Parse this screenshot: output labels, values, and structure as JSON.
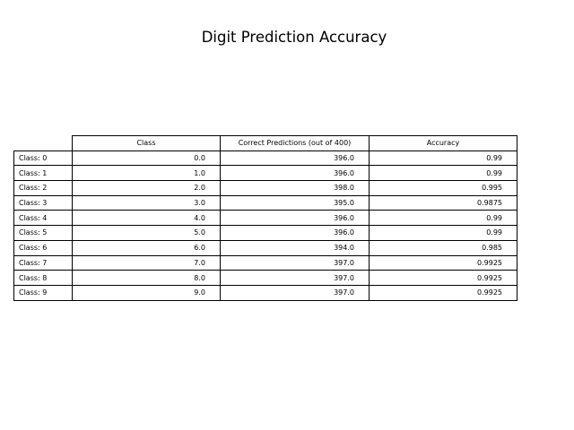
{
  "title": "Digit Prediction Accuracy",
  "chart_data": {
    "type": "table",
    "title": "Digit Prediction Accuracy",
    "columns": [
      "Class",
      "Correct Predictions (out of 400)",
      "Accuracy"
    ],
    "rows": [
      {
        "label": "Class: 0",
        "cells": [
          "0.0",
          "396.0",
          "0.99"
        ]
      },
      {
        "label": "Class: 1",
        "cells": [
          "1.0",
          "396.0",
          "0.99"
        ]
      },
      {
        "label": "Class: 2",
        "cells": [
          "2.0",
          "398.0",
          "0.995"
        ]
      },
      {
        "label": "Class: 3",
        "cells": [
          "3.0",
          "395.0",
          "0.9875"
        ]
      },
      {
        "label": "Class: 4",
        "cells": [
          "4.0",
          "396.0",
          "0.99"
        ]
      },
      {
        "label": "Class: 5",
        "cells": [
          "5.0",
          "396.0",
          "0.99"
        ]
      },
      {
        "label": "Class: 6",
        "cells": [
          "6.0",
          "394.0",
          "0.985"
        ]
      },
      {
        "label": "Class: 7",
        "cells": [
          "7.0",
          "397.0",
          "0.9925"
        ]
      },
      {
        "label": "Class: 8",
        "cells": [
          "8.0",
          "397.0",
          "0.9925"
        ]
      },
      {
        "label": "Class: 9",
        "cells": [
          "9.0",
          "397.0",
          "0.9925"
        ]
      }
    ]
  }
}
